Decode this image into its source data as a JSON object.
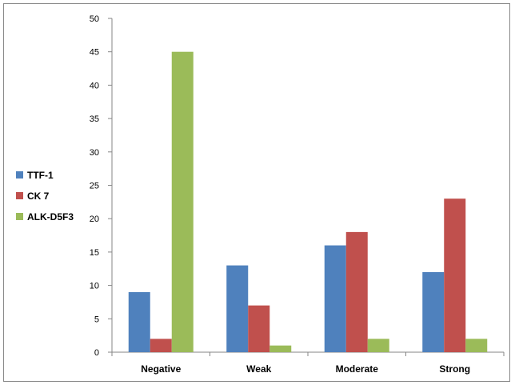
{
  "chart_data": {
    "type": "bar",
    "title": "",
    "xlabel": "",
    "ylabel": "",
    "categories": [
      "Negative",
      "Weak",
      "Moderate",
      "Strong"
    ],
    "series": [
      {
        "name": "TTF-1",
        "values": [
          9,
          13,
          16,
          12
        ],
        "color": "#4f81bd"
      },
      {
        "name": "CK 7",
        "values": [
          2,
          7,
          18,
          23
        ],
        "color": "#c0504d"
      },
      {
        "name": "ALK-D5F3",
        "values": [
          45,
          1,
          2,
          2
        ],
        "color": "#9bbb59"
      }
    ],
    "ylim": [
      0,
      50
    ],
    "yticks": [
      0,
      5,
      10,
      15,
      20,
      25,
      30,
      35,
      40,
      45,
      50
    ],
    "grid": false,
    "legend_position": "left"
  }
}
